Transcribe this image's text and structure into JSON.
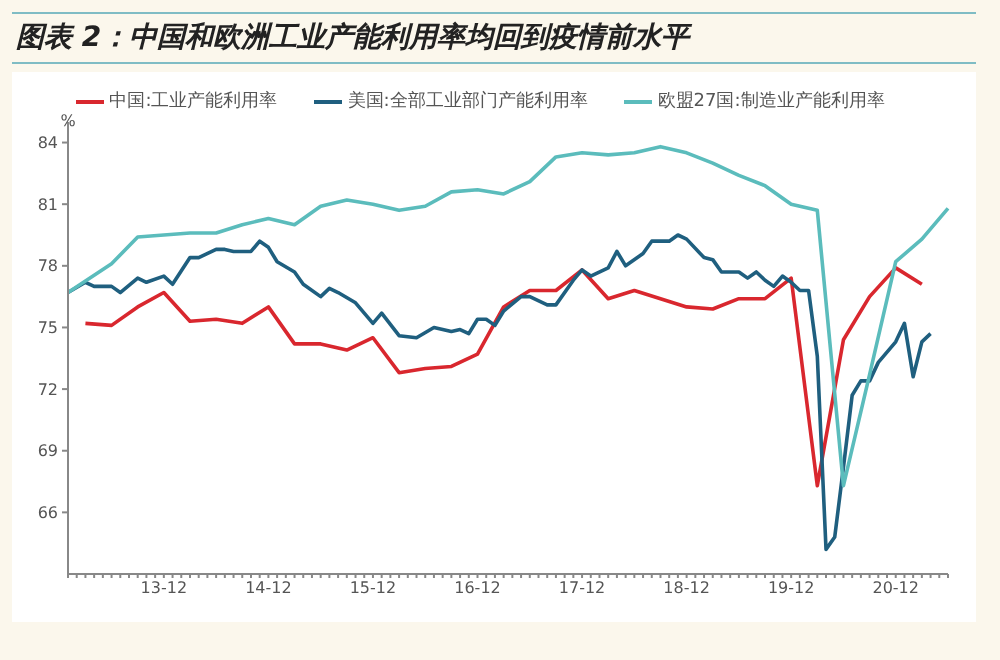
{
  "chart_data": {
    "type": "line",
    "title": "图表 2：中国和欧洲工业产能利用率均回到疫情前水平",
    "ylabel": "%",
    "categories": [
      null,
      null,
      null,
      null,
      null,
      null,
      null,
      null,
      null,
      null,
      null,
      "13-12",
      null,
      null,
      null,
      null,
      null,
      null,
      null,
      null,
      null,
      null,
      null,
      "14-12",
      null,
      null,
      null,
      null,
      null,
      null,
      null,
      null,
      null,
      null,
      null,
      "15-12",
      null,
      null,
      null,
      null,
      null,
      null,
      null,
      null,
      null,
      null,
      null,
      "16-12",
      null,
      null,
      null,
      null,
      null,
      null,
      null,
      null,
      null,
      null,
      null,
      "17-12",
      null,
      null,
      null,
      null,
      null,
      null,
      null,
      null,
      null,
      null,
      null,
      "18-12",
      null,
      null,
      null,
      null,
      null,
      null,
      null,
      null,
      null,
      null,
      null,
      "19-12",
      null,
      null,
      null,
      null,
      null,
      null,
      null,
      null,
      null,
      null,
      null,
      "20-12",
      null,
      null,
      null,
      null,
      null,
      null
    ],
    "ylim": [
      63,
      85
    ],
    "yticks": [
      66,
      69,
      72,
      75,
      78,
      81,
      84
    ],
    "legend": "top",
    "marker": "none",
    "line_style": "solid",
    "series": [
      {
        "name": "中国:工业产能利用率",
        "color": "#d9272e",
        "values": [
          null,
          null,
          75.2,
          null,
          null,
          75.1,
          null,
          null,
          76.0,
          null,
          null,
          76.7,
          null,
          null,
          75.3,
          null,
          null,
          75.4,
          null,
          null,
          75.2,
          null,
          null,
          76.0,
          null,
          null,
          74.2,
          null,
          null,
          74.2,
          null,
          null,
          73.9,
          null,
          null,
          74.5,
          null,
          null,
          72.8,
          null,
          null,
          73.0,
          null,
          null,
          73.1,
          null,
          null,
          73.7,
          null,
          null,
          76.0,
          null,
          null,
          76.8,
          null,
          null,
          76.8,
          null,
          null,
          77.8,
          null,
          null,
          76.4,
          null,
          null,
          76.8,
          null,
          null,
          76.4,
          null,
          null,
          76.0,
          null,
          null,
          75.9,
          null,
          null,
          76.4,
          null,
          null,
          76.4,
          null,
          null,
          77.4,
          null,
          null,
          67.3,
          null,
          null,
          74.4,
          null,
          null,
          76.5,
          null,
          null,
          77.9,
          null,
          null,
          77.1,
          null,
          null,
          null
        ]
      },
      {
        "name": "美国:全部工业部门产能利用率",
        "color": "#1f5f7f",
        "values": [
          76.7,
          null,
          77.2,
          77.0,
          null,
          77.0,
          76.7,
          null,
          77.4,
          77.2,
          null,
          77.5,
          77.1,
          null,
          78.4,
          78.4,
          null,
          78.8,
          78.8,
          78.7,
          78.7,
          78.7,
          79.2,
          78.9,
          78.2,
          null,
          77.7,
          77.1,
          null,
          76.5,
          76.9,
          76.7,
          null,
          76.2,
          null,
          75.2,
          75.7,
          null,
          74.6,
          null,
          74.5,
          null,
          75.0,
          null,
          74.8,
          74.9,
          74.7,
          75.4,
          75.4,
          75.1,
          75.8,
          null,
          76.5,
          76.5,
          null,
          76.1,
          76.1,
          null,
          77.3,
          77.8,
          77.5,
          null,
          77.9,
          78.7,
          78.0,
          null,
          78.6,
          79.2,
          null,
          79.2,
          79.5,
          79.3,
          null,
          78.4,
          78.3,
          77.7,
          null,
          77.7,
          77.4,
          77.7,
          77.3,
          77.0,
          77.5,
          77.2,
          76.8,
          76.8,
          73.6,
          64.2,
          64.8,
          68.2,
          71.7,
          72.4,
          72.4,
          73.3,
          null,
          74.3,
          75.2,
          72.6,
          74.3,
          74.7,
          null,
          null
        ]
      },
      {
        "name": "欧盟27国:制造业产能利用率",
        "color": "#5bbcbc",
        "values": [
          76.7,
          null,
          null,
          null,
          null,
          78.1,
          null,
          null,
          79.4,
          null,
          null,
          79.5,
          null,
          null,
          79.6,
          null,
          null,
          79.6,
          null,
          null,
          80.0,
          null,
          null,
          80.3,
          null,
          null,
          80.0,
          null,
          null,
          80.9,
          null,
          null,
          81.2,
          null,
          null,
          81.0,
          null,
          null,
          80.7,
          null,
          null,
          80.9,
          null,
          null,
          81.6,
          null,
          null,
          81.7,
          null,
          null,
          81.5,
          null,
          null,
          82.1,
          null,
          null,
          83.3,
          null,
          null,
          83.5,
          null,
          null,
          83.4,
          null,
          null,
          83.5,
          null,
          null,
          83.8,
          null,
          null,
          83.5,
          null,
          null,
          83.0,
          null,
          null,
          82.4,
          null,
          null,
          81.9,
          null,
          null,
          81.0,
          null,
          null,
          80.7,
          null,
          null,
          67.3,
          null,
          null,
          72.7,
          null,
          null,
          78.2,
          null,
          null,
          79.3,
          null,
          null,
          80.8
        ]
      }
    ]
  }
}
